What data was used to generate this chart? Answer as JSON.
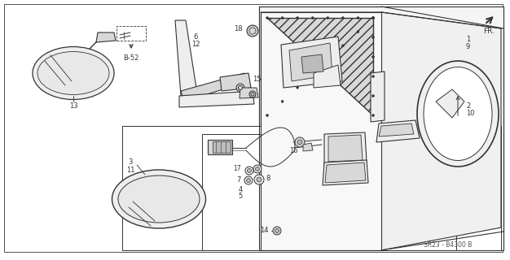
{
  "bg_color": "#ffffff",
  "lc": "#333333",
  "diagram_code": "SR23 - B4300 B",
  "gray_fill": "#d8d8d8",
  "light_gray": "#eeeeee",
  "mid_gray": "#bbbbbb"
}
